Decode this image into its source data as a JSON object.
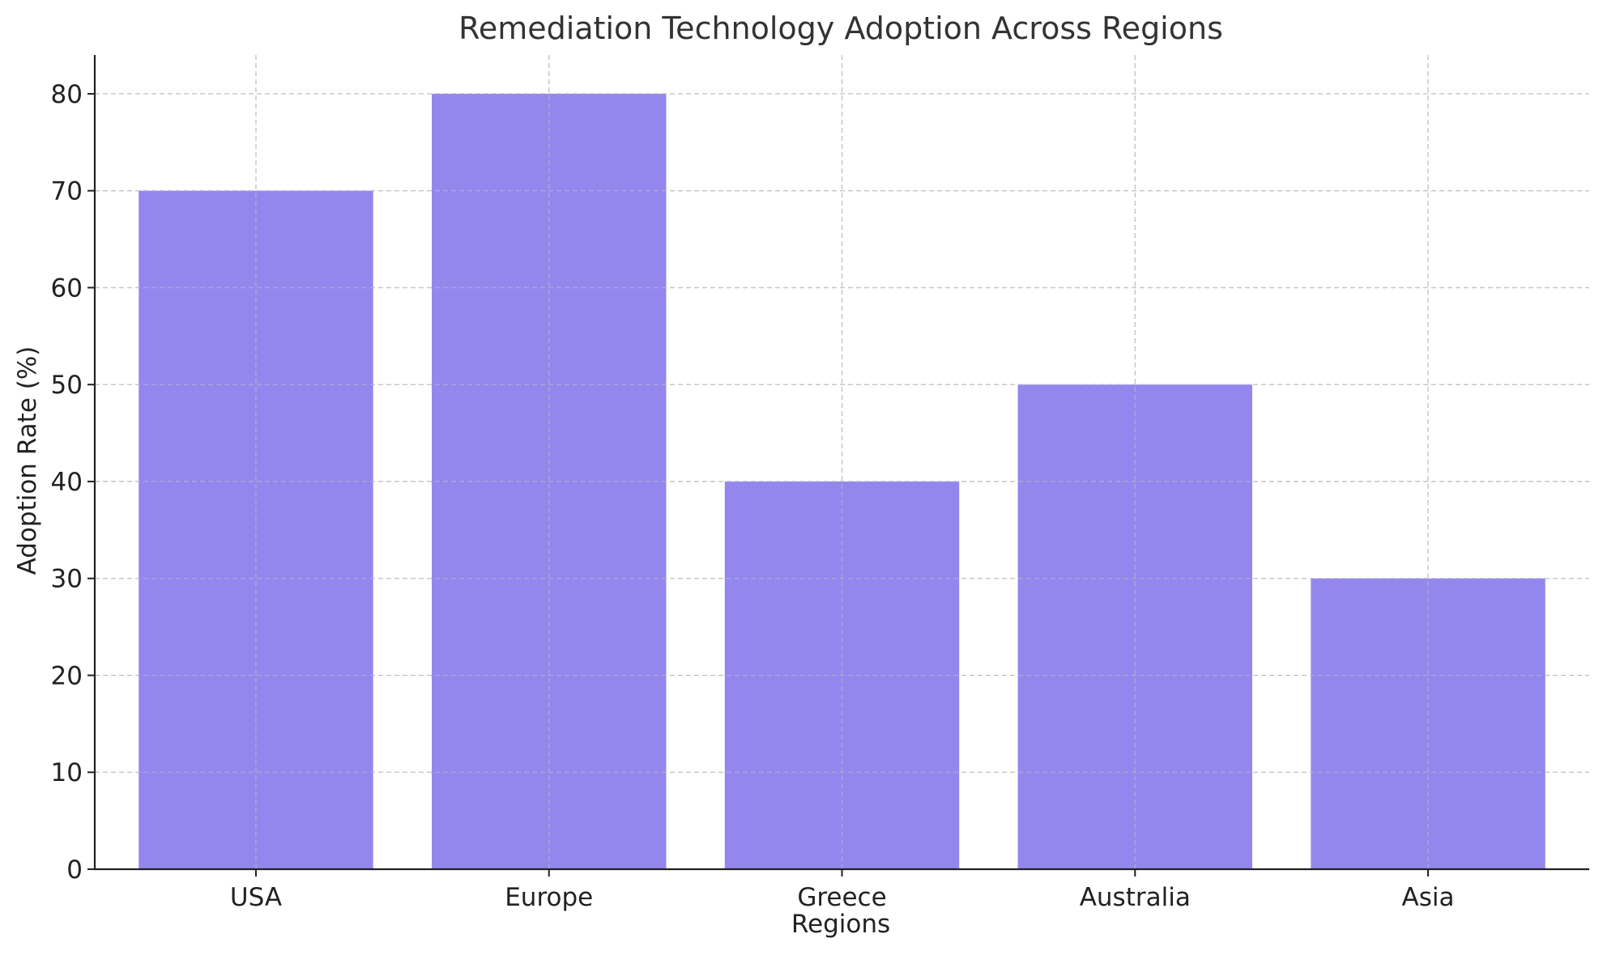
{
  "chart_data": {
    "type": "bar",
    "title": "Remediation Technology Adoption Across Regions",
    "xlabel": "Regions",
    "ylabel": "Adoption Rate (%)",
    "categories": [
      "USA",
      "Europe",
      "Greece",
      "Australia",
      "Asia"
    ],
    "values": [
      70,
      80,
      40,
      50,
      30
    ],
    "ylim": [
      0,
      84
    ],
    "yticks": [
      0,
      10,
      20,
      30,
      40,
      50,
      60,
      70,
      80
    ],
    "grid": true,
    "bar_color": "#9387ee"
  }
}
